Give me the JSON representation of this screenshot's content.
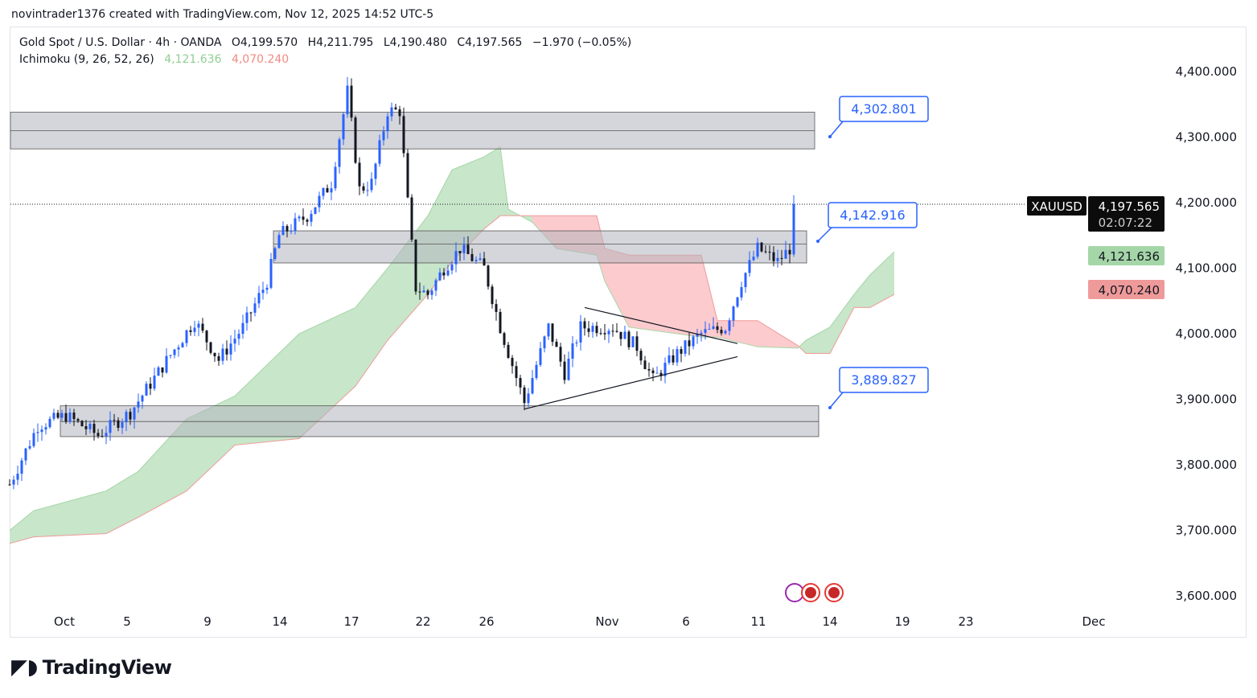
{
  "credit": "novintrader1376 created with TradingView.com, Nov 12, 2025 14:52 UTC-5",
  "legend": {
    "symbol": "Gold Spot / U.S. Dollar · 4h · OANDA",
    "open": "O4,199.570",
    "high": "H4,211.795",
    "low": "L4,190.480",
    "close": "C4,197.565",
    "change": "−1.970 (−0.05%)",
    "indicator": "Ichimoku (9, 26, 52, 26)",
    "ind_a": "4,121.636",
    "ind_b": "4,070.240"
  },
  "brand": "TradingView",
  "colors": {
    "up": "#2962ff",
    "down": "#131722",
    "cloud_bull": "#c8e6c9",
    "cloud_bear": "#fccbcd",
    "span_a": "#8fcf93",
    "span_b": "#f28b82",
    "zone": "#d1d4dc",
    "callout": "#2962ff"
  },
  "chart_data": {
    "type": "candlestick",
    "timeframe": "4h",
    "ylim": [
      3570,
      4450
    ],
    "y_ticks": [
      3600,
      3700,
      3800,
      3900,
      4000,
      4100,
      4200,
      4300,
      4400
    ],
    "y_tick_labels": [
      "3,600.000",
      "3,700.000",
      "3,800.000",
      "3,900.000",
      "4,000.000",
      "4,100.000",
      "4,200.000",
      "4,300.000",
      "4,400.000"
    ],
    "x_tick_labels": [
      "Oct",
      "5",
      "9",
      "14",
      "17",
      "22",
      "26",
      "Nov",
      "6",
      "11",
      "14",
      "19",
      "23",
      "Dec"
    ],
    "price_path_bar_price": [
      [
        0,
        3770
      ],
      [
        7,
        3860
      ],
      [
        14,
        3875
      ],
      [
        22,
        3845
      ],
      [
        30,
        3880
      ],
      [
        38,
        3950
      ],
      [
        46,
        4020
      ],
      [
        52,
        3960
      ],
      [
        58,
        4010
      ],
      [
        64,
        4080
      ],
      [
        67,
        4150
      ],
      [
        74,
        4180
      ],
      [
        80,
        4230
      ],
      [
        84,
        4370
      ],
      [
        87,
        4220
      ],
      [
        90,
        4230
      ],
      [
        94,
        4340
      ],
      [
        97,
        4340
      ],
      [
        99,
        4200
      ],
      [
        101,
        4070
      ],
      [
        104,
        4060
      ],
      [
        108,
        4100
      ],
      [
        112,
        4130
      ],
      [
        118,
        4100
      ],
      [
        122,
        4010
      ],
      [
        128,
        3895
      ],
      [
        134,
        4010
      ],
      [
        138,
        3940
      ],
      [
        142,
        4010
      ],
      [
        150,
        4010
      ],
      [
        156,
        3980
      ],
      [
        160,
        3930
      ],
      [
        166,
        3970
      ],
      [
        172,
        4000
      ],
      [
        178,
        4010
      ],
      [
        182,
        4080
      ],
      [
        186,
        4130
      ],
      [
        191,
        4110
      ],
      [
        194,
        4130
      ],
      [
        195,
        4197.565
      ]
    ],
    "ichimoku_cloud_bar_spanA_spanB": [
      [
        0,
        3700,
        3680
      ],
      [
        6,
        3730,
        3690
      ],
      [
        24,
        3760,
        3695
      ],
      [
        32,
        3790,
        3720
      ],
      [
        44,
        3870,
        3760
      ],
      [
        56,
        3905,
        3830
      ],
      [
        72,
        4000,
        3840
      ],
      [
        86,
        4040,
        3920
      ],
      [
        94,
        4100,
        3990
      ],
      [
        104,
        4180,
        4060
      ],
      [
        110,
        4250,
        4110
      ],
      [
        118,
        4270,
        4160
      ],
      [
        122,
        4285,
        4180
      ],
      [
        124,
        4190,
        4180
      ],
      [
        130,
        4170,
        4180
      ],
      [
        136,
        4130,
        4180
      ],
      [
        146,
        4120,
        4180
      ],
      [
        148,
        4080,
        4130
      ],
      [
        154,
        4010,
        4120
      ],
      [
        172,
        3995,
        4120
      ],
      [
        176,
        3995,
        4020
      ],
      [
        186,
        3980,
        4020
      ],
      [
        196,
        3978,
        3982
      ],
      [
        198,
        3990,
        3970
      ],
      [
        204,
        4010,
        3970
      ],
      [
        210,
        4060,
        4040
      ],
      [
        214,
        4090,
        4040
      ],
      [
        220,
        4125,
        4060
      ]
    ],
    "zones": [
      {
        "top": 4338,
        "mid": 4310,
        "bottom": 4282
      },
      {
        "top": 4157,
        "mid": 4137,
        "bottom": 4108
      },
      {
        "top": 3890,
        "mid": 3866,
        "bottom": 3843
      }
    ],
    "trendlines": [
      {
        "from": [
          143,
          4040
        ],
        "to": [
          181,
          3985
        ]
      },
      {
        "from": [
          128,
          3885
        ],
        "to": [
          181,
          3965
        ]
      }
    ],
    "callouts": [
      "4,302.801",
      "4,142.916",
      "3,889.827"
    ],
    "last_price": {
      "symbol": "XAUUSD",
      "price": "4,197.565",
      "countdown": "02:07:22",
      "value": 4197.565
    },
    "span_a_label": {
      "text": "4,121.636",
      "value": 4121.636
    },
    "span_b_label": {
      "text": "4,070.240",
      "value": 4070.24
    }
  }
}
